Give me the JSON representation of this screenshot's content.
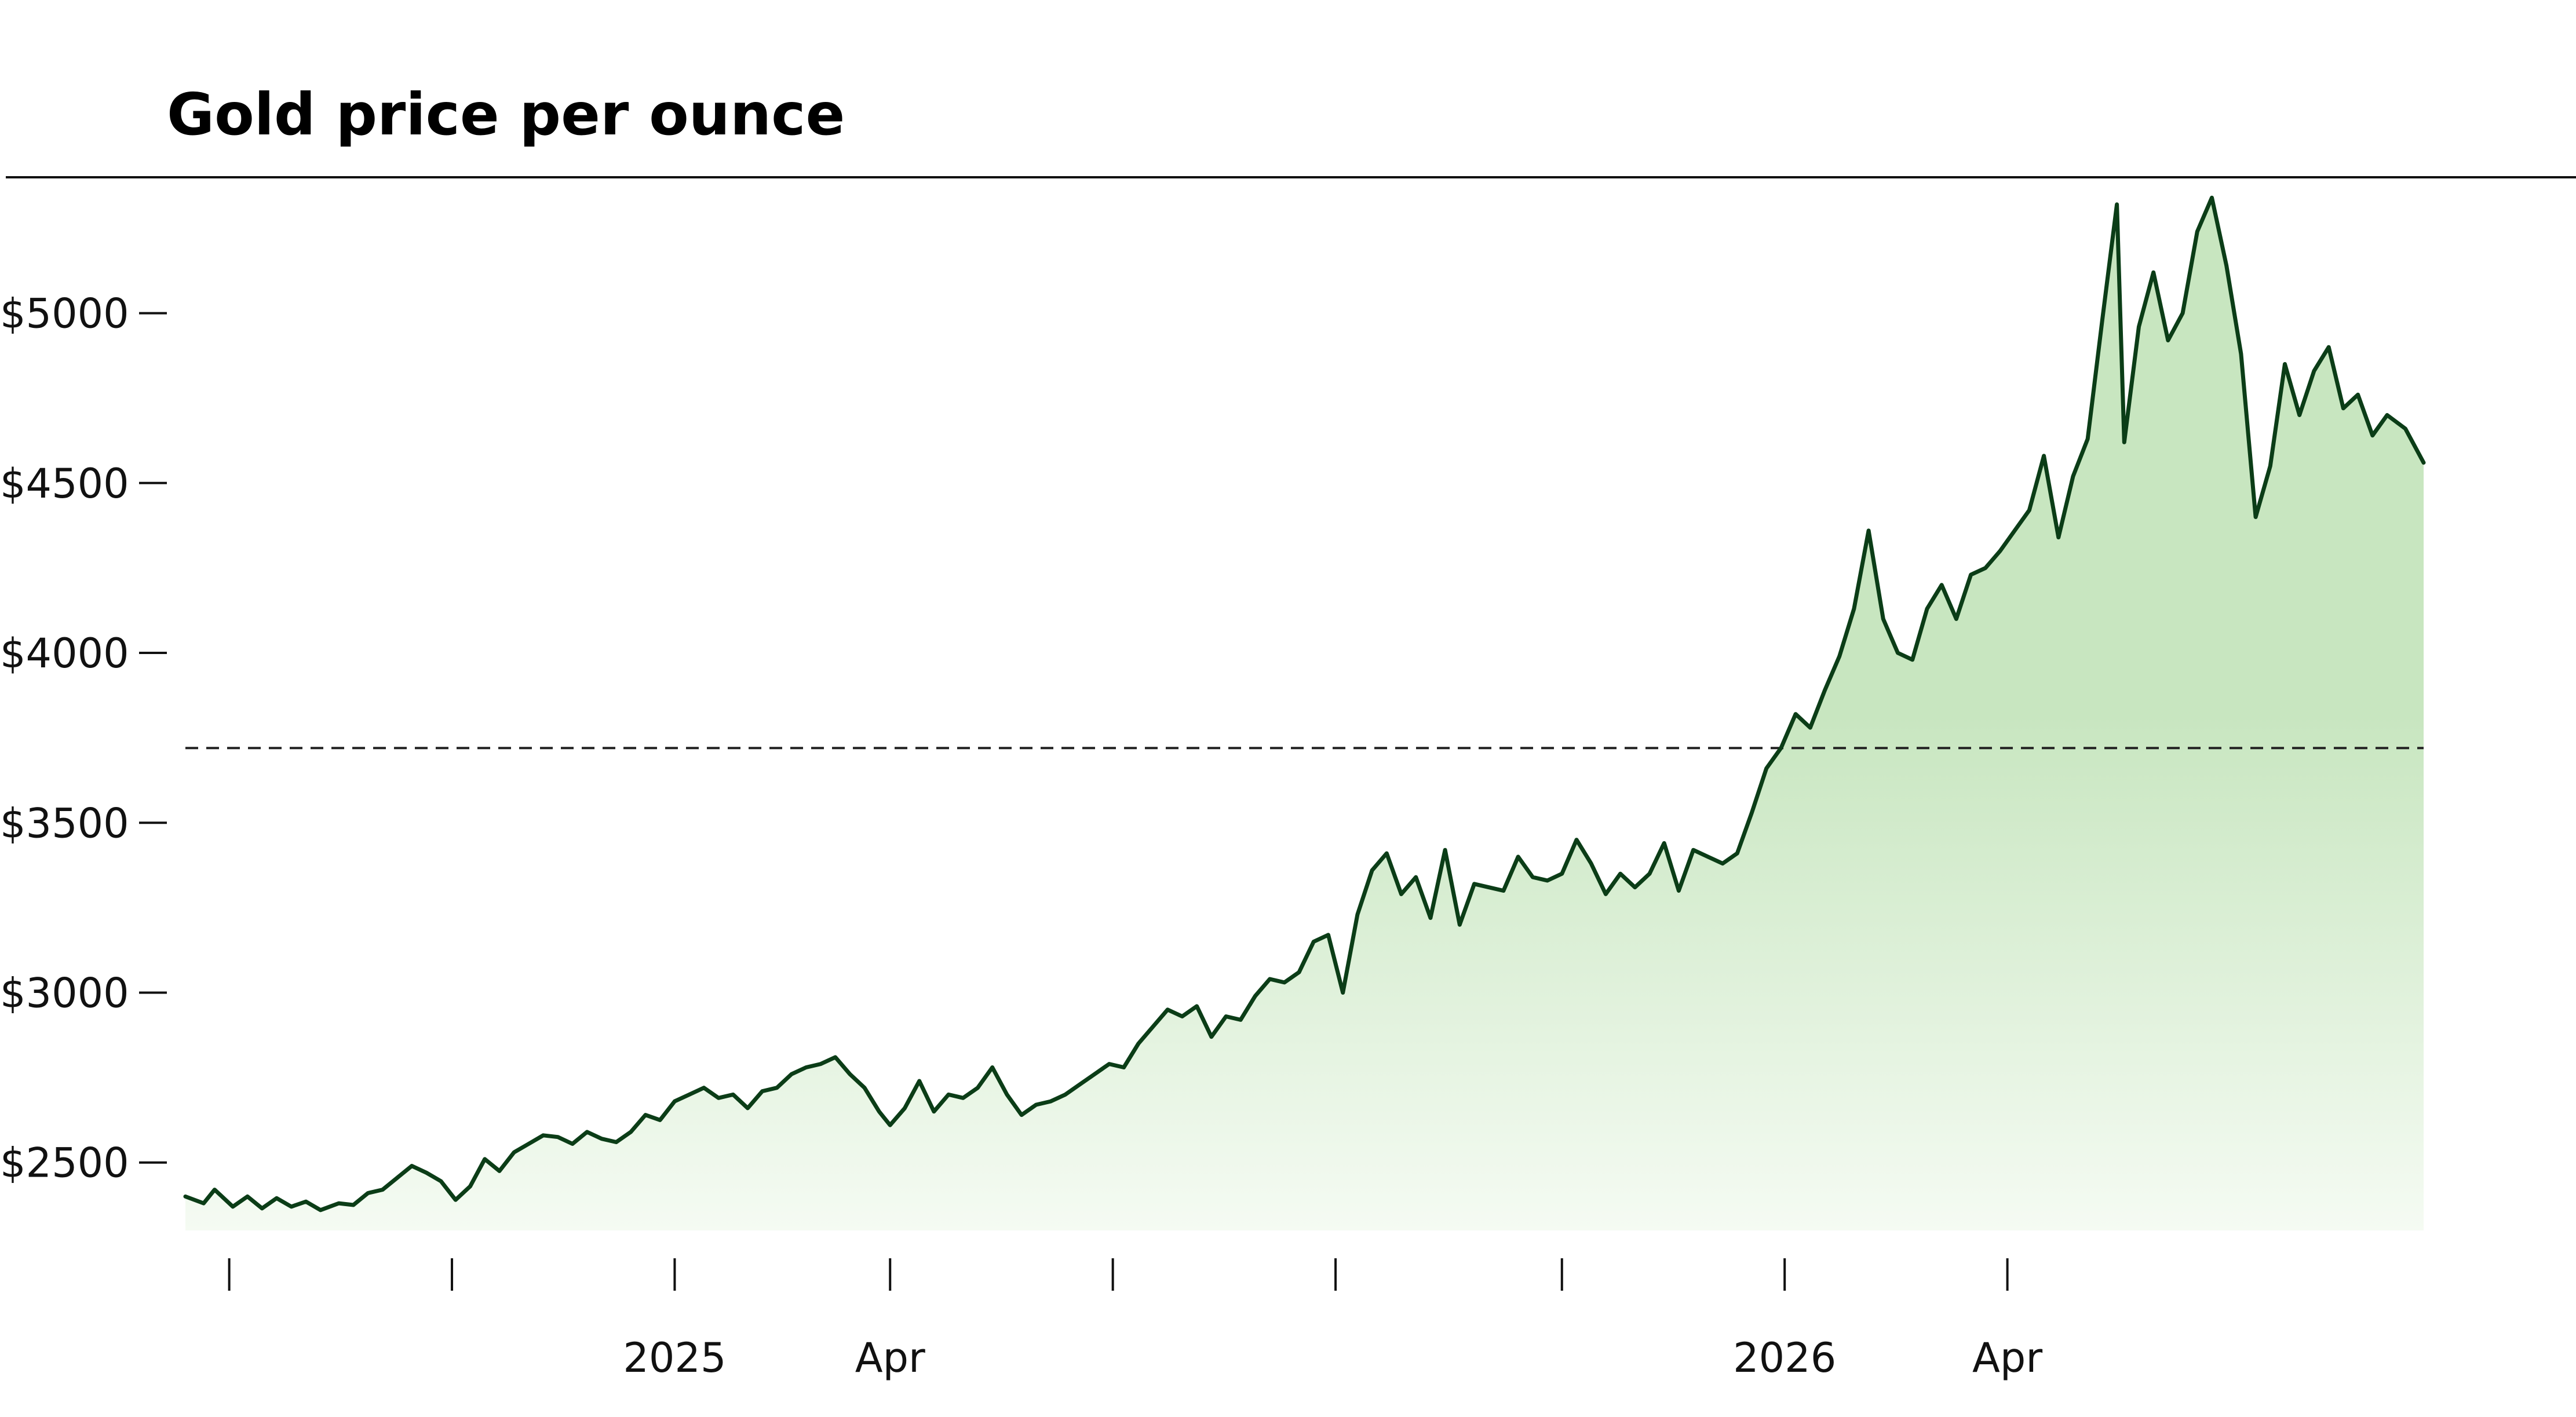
{
  "chart_data": {
    "type": "area",
    "title": "Gold price per ounce",
    "xlabel": "",
    "ylabel": "",
    "x_range": [
      "2024-08-20",
      "2026-04-25"
    ],
    "ylim": [
      2300,
      5400
    ],
    "y_ticks": [
      {
        "value": 2500,
        "label": "$2500"
      },
      {
        "value": 3000,
        "label": "$3000"
      },
      {
        "value": 3500,
        "label": "$3500"
      },
      {
        "value": 4000,
        "label": "$4000"
      },
      {
        "value": 4500,
        "label": "$4500"
      },
      {
        "value": 5000,
        "label": "$5000"
      }
    ],
    "x_ticks": [
      {
        "date": "2024-09-01",
        "label": ""
      },
      {
        "date": "2024-11-01",
        "label": ""
      },
      {
        "date": "2025-01-01",
        "label": "2025"
      },
      {
        "date": "2025-03-01",
        "label": "Apr"
      },
      {
        "date": "2025-05-01",
        "label": ""
      },
      {
        "date": "2025-07-01",
        "label": ""
      },
      {
        "date": "2025-09-01",
        "label": ""
      },
      {
        "date": "2025-11-01",
        "label": "2026"
      },
      {
        "date": "2026-01-01",
        "label": "Apr"
      }
    ],
    "reference_line": {
      "value": 3720,
      "style": "dashed"
    },
    "grid": false,
    "colors": {
      "line": "#0b3d17",
      "fill_top": "#c8e6c0",
      "fill_bottom": "#f5fbf3",
      "axis": "#111111"
    },
    "series": [
      {
        "values": [
          [
            "2024-08-20",
            2400
          ],
          [
            "2024-08-25",
            2380
          ],
          [
            "2024-08-28",
            2420
          ],
          [
            "2024-09-02",
            2370
          ],
          [
            "2024-09-06",
            2400
          ],
          [
            "2024-09-10",
            2365
          ],
          [
            "2024-09-14",
            2395
          ],
          [
            "2024-09-18",
            2370
          ],
          [
            "2024-09-22",
            2385
          ],
          [
            "2024-09-26",
            2360
          ],
          [
            "2024-10-01",
            2380
          ],
          [
            "2024-10-05",
            2375
          ],
          [
            "2024-10-09",
            2410
          ],
          [
            "2024-10-13",
            2420
          ],
          [
            "2024-10-17",
            2455
          ],
          [
            "2024-10-21",
            2490
          ],
          [
            "2024-10-25",
            2470
          ],
          [
            "2024-10-29",
            2445
          ],
          [
            "2024-11-02",
            2390
          ],
          [
            "2024-11-06",
            2430
          ],
          [
            "2024-11-10",
            2510
          ],
          [
            "2024-11-14",
            2475
          ],
          [
            "2024-11-18",
            2530
          ],
          [
            "2024-11-22",
            2555
          ],
          [
            "2024-11-26",
            2580
          ],
          [
            "2024-11-30",
            2575
          ],
          [
            "2024-12-04",
            2555
          ],
          [
            "2024-12-08",
            2590
          ],
          [
            "2024-12-12",
            2570
          ],
          [
            "2024-12-16",
            2560
          ],
          [
            "2024-12-20",
            2590
          ],
          [
            "2024-12-24",
            2640
          ],
          [
            "2024-12-28",
            2625
          ],
          [
            "2025-01-01",
            2680
          ],
          [
            "2025-01-05",
            2700
          ],
          [
            "2025-01-09",
            2720
          ],
          [
            "2025-01-13",
            2690
          ],
          [
            "2025-01-17",
            2700
          ],
          [
            "2025-01-21",
            2660
          ],
          [
            "2025-01-25",
            2710
          ],
          [
            "2025-01-29",
            2720
          ],
          [
            "2025-02-02",
            2760
          ],
          [
            "2025-02-06",
            2780
          ],
          [
            "2025-02-10",
            2790
          ],
          [
            "2025-02-14",
            2810
          ],
          [
            "2025-02-18",
            2760
          ],
          [
            "2025-02-22",
            2720
          ],
          [
            "2025-02-26",
            2650
          ],
          [
            "2025-03-01",
            2610
          ],
          [
            "2025-03-05",
            2660
          ],
          [
            "2025-03-09",
            2740
          ],
          [
            "2025-03-13",
            2650
          ],
          [
            "2025-03-17",
            2700
          ],
          [
            "2025-03-21",
            2690
          ],
          [
            "2025-03-25",
            2720
          ],
          [
            "2025-03-29",
            2780
          ],
          [
            "2025-04-02",
            2700
          ],
          [
            "2025-04-06",
            2640
          ],
          [
            "2025-04-10",
            2670
          ],
          [
            "2025-04-14",
            2680
          ],
          [
            "2025-04-18",
            2700
          ],
          [
            "2025-04-22",
            2730
          ],
          [
            "2025-04-26",
            2760
          ],
          [
            "2025-04-30",
            2790
          ],
          [
            "2025-05-04",
            2780
          ],
          [
            "2025-05-08",
            2850
          ],
          [
            "2025-05-12",
            2900
          ],
          [
            "2025-05-16",
            2950
          ],
          [
            "2025-05-20",
            2930
          ],
          [
            "2025-05-24",
            2960
          ],
          [
            "2025-05-28",
            2870
          ],
          [
            "2025-06-01",
            2930
          ],
          [
            "2025-06-05",
            2920
          ],
          [
            "2025-06-09",
            2990
          ],
          [
            "2025-06-13",
            3040
          ],
          [
            "2025-06-17",
            3030
          ],
          [
            "2025-06-21",
            3060
          ],
          [
            "2025-06-25",
            3150
          ],
          [
            "2025-06-29",
            3170
          ],
          [
            "2025-07-03",
            3000
          ],
          [
            "2025-07-07",
            3230
          ],
          [
            "2025-07-11",
            3360
          ],
          [
            "2025-07-15",
            3410
          ],
          [
            "2025-07-19",
            3290
          ],
          [
            "2025-07-23",
            3340
          ],
          [
            "2025-07-27",
            3220
          ],
          [
            "2025-07-31",
            3420
          ],
          [
            "2025-08-04",
            3200
          ],
          [
            "2025-08-08",
            3320
          ],
          [
            "2025-08-12",
            3310
          ],
          [
            "2025-08-16",
            3300
          ],
          [
            "2025-08-20",
            3400
          ],
          [
            "2025-08-24",
            3340
          ],
          [
            "2025-08-28",
            3330
          ],
          [
            "2025-09-01",
            3350
          ],
          [
            "2025-09-05",
            3450
          ],
          [
            "2025-09-09",
            3380
          ],
          [
            "2025-09-13",
            3290
          ],
          [
            "2025-09-17",
            3350
          ],
          [
            "2025-09-21",
            3310
          ],
          [
            "2025-09-25",
            3350
          ],
          [
            "2025-09-29",
            3440
          ],
          [
            "2025-10-03",
            3300
          ],
          [
            "2025-10-07",
            3420
          ],
          [
            "2025-10-11",
            3400
          ],
          [
            "2025-10-15",
            3380
          ],
          [
            "2025-10-19",
            3410
          ],
          [
            "2025-10-23",
            3530
          ],
          [
            "2025-10-27",
            3660
          ],
          [
            "2025-10-31",
            3720
          ],
          [
            "2025-11-04",
            3820
          ],
          [
            "2025-11-08",
            3780
          ],
          [
            "2025-11-12",
            3890
          ],
          [
            "2025-11-16",
            3990
          ],
          [
            "2025-11-20",
            4130
          ],
          [
            "2025-11-24",
            4360
          ],
          [
            "2025-11-28",
            4100
          ],
          [
            "2025-12-02",
            4000
          ],
          [
            "2025-12-06",
            3980
          ],
          [
            "2025-12-10",
            4130
          ],
          [
            "2025-12-14",
            4200
          ],
          [
            "2025-12-18",
            4100
          ],
          [
            "2025-12-22",
            4230
          ],
          [
            "2025-12-26",
            4250
          ],
          [
            "2025-12-30",
            4300
          ],
          [
            "2026-01-03",
            4360
          ],
          [
            "2026-01-07",
            4420
          ],
          [
            "2026-01-11",
            4580
          ],
          [
            "2026-01-15",
            4340
          ],
          [
            "2026-01-19",
            4520
          ],
          [
            "2026-01-23",
            4630
          ],
          [
            "2026-01-27",
            4980
          ],
          [
            "2026-01-31",
            5320
          ],
          [
            "2026-02-02",
            4620
          ],
          [
            "2026-02-06",
            4960
          ],
          [
            "2026-02-10",
            5120
          ],
          [
            "2026-02-14",
            4920
          ],
          [
            "2026-02-18",
            5000
          ],
          [
            "2026-02-22",
            5240
          ],
          [
            "2026-02-26",
            5340
          ],
          [
            "2026-03-02",
            5140
          ],
          [
            "2026-03-06",
            4880
          ],
          [
            "2026-03-10",
            4400
          ],
          [
            "2026-03-14",
            4550
          ],
          [
            "2026-03-18",
            4850
          ],
          [
            "2026-03-22",
            4700
          ],
          [
            "2026-03-26",
            4830
          ],
          [
            "2026-03-30",
            4900
          ],
          [
            "2026-04-03",
            4720
          ],
          [
            "2026-04-07",
            4760
          ],
          [
            "2026-04-11",
            4640
          ],
          [
            "2026-04-15",
            4700
          ],
          [
            "2026-04-20",
            4660
          ],
          [
            "2026-04-25",
            4560
          ]
        ]
      }
    ]
  }
}
